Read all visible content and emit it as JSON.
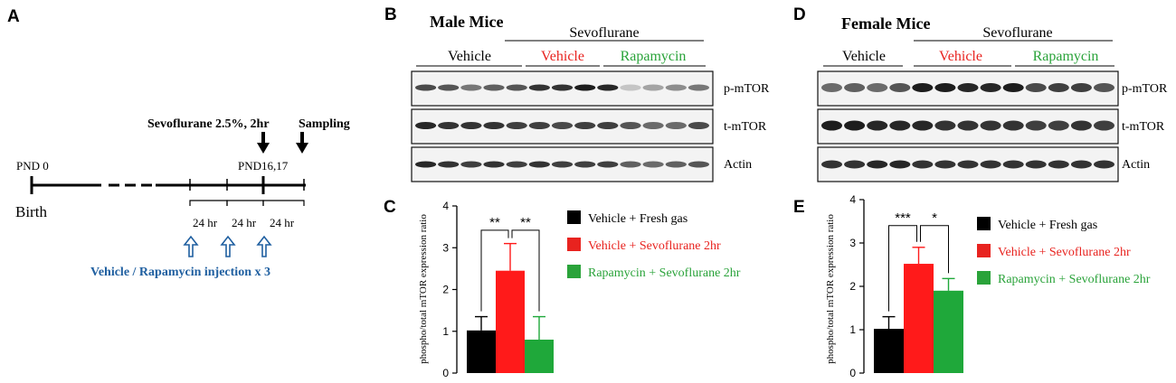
{
  "panel_letters": {
    "a": "A",
    "b": "B",
    "c": "C",
    "d": "D",
    "e": "E"
  },
  "timeline": {
    "treatment": "Sevoflurane 2.5%, 2hr",
    "sampling": "Sampling",
    "pnd0": "PND 0",
    "pnd_end": "PND16,17",
    "birth": "Birth",
    "intervals": [
      "24 hr",
      "24 hr",
      "24 hr"
    ],
    "injection": "Vehicle / Rapamycin injection x 3",
    "injection_color": "#1f5fa0"
  },
  "blot_male": {
    "title": "Male Mice",
    "group_header": "Sevoflurane",
    "groups": [
      {
        "label": "Vehicle",
        "color": "#000000"
      },
      {
        "label": "Vehicle",
        "color": "#e8231f"
      },
      {
        "label": "Rapamycin",
        "color": "#2aa33a"
      }
    ],
    "rows": [
      "p-mTOR",
      "t-mTOR",
      "Actin"
    ]
  },
  "blot_female": {
    "title": "Female Mice",
    "group_header": "Sevoflurane",
    "groups": [
      {
        "label": "Vehicle",
        "color": "#000000"
      },
      {
        "label": "Vehicle",
        "color": "#e8231f"
      },
      {
        "label": "Rapamycin",
        "color": "#2aa33a"
      }
    ],
    "rows": [
      "p-mTOR",
      "t-mTOR",
      "Actin"
    ]
  },
  "legend": [
    {
      "label": "Vehicle + Fresh gas",
      "color": "#000000"
    },
    {
      "label": "Vehicle + Sevoflurane 2hr",
      "color": "#e8231f"
    },
    {
      "label": "Rapamycin + Sevoflurane 2hr",
      "color": "#2aa33a"
    }
  ],
  "chart_data": [
    {
      "type": "bar",
      "panel": "C",
      "ylabel": "phospho/total mTOR expression ratio",
      "ylim": [
        0,
        4
      ],
      "yticks": [
        "0",
        "1",
        "2",
        "3",
        "4"
      ],
      "values": [
        1.02,
        2.45,
        0.8
      ],
      "errors": [
        0.33,
        0.65,
        0.55
      ],
      "colors": [
        "#000000",
        "#ff1a1a",
        "#1fa83a"
      ],
      "significance": [
        "**",
        "**"
      ]
    },
    {
      "type": "bar",
      "panel": "E",
      "ylabel": "phospho/total mTOR expression ratio",
      "ylim": [
        0,
        4
      ],
      "yticks": [
        "0",
        "1",
        "2",
        "3",
        "4"
      ],
      "values": [
        1.02,
        2.52,
        1.9
      ],
      "errors": [
        0.28,
        0.38,
        0.28
      ],
      "colors": [
        "#000000",
        "#ff1a1a",
        "#1fa83a"
      ],
      "significance": [
        "***",
        "*"
      ]
    }
  ]
}
